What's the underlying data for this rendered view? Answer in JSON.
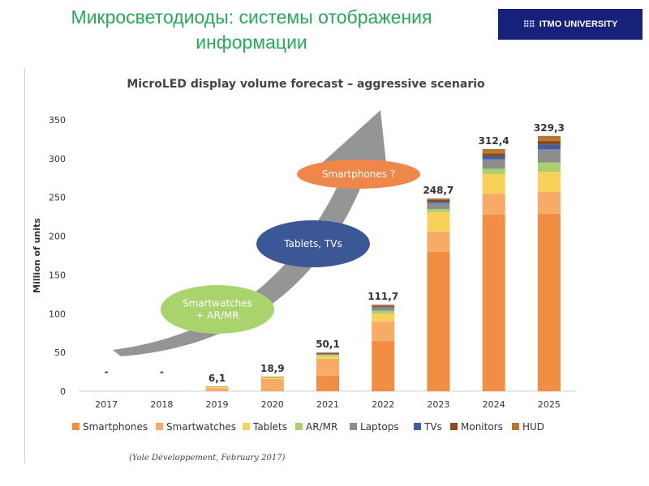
{
  "slide": {
    "title_line1": "Микросветодиоды: системы отображения",
    "title_line2": "информации",
    "logo_text": "ITMO UNIVERSITY"
  },
  "chart_data": {
    "type": "bar",
    "stacked": true,
    "title": "MicroLED display volume forecast – aggressive scenario",
    "ylabel": "Million of units",
    "xlabel": "",
    "ylim": [
      0,
      350
    ],
    "yticks": [
      0,
      50,
      100,
      150,
      200,
      250,
      300,
      350
    ],
    "grid": false,
    "legend_position": "bottom",
    "categories": [
      "2017",
      "2018",
      "2019",
      "2020",
      "2021",
      "2022",
      "2023",
      "2024",
      "2025"
    ],
    "totals": [
      "-",
      "-",
      "6,1",
      "18,9",
      "50,1",
      "111,7",
      "248,7",
      "312,4",
      "329,3"
    ],
    "series": [
      {
        "name": "Smartphones",
        "color": "#f28e44",
        "values": [
          0,
          0,
          0,
          0,
          20,
          65,
          180,
          228,
          229
        ]
      },
      {
        "name": "Smartwatches",
        "color": "#f7ab66",
        "values": [
          0,
          0,
          4,
          16,
          22,
          25,
          26,
          27,
          28
        ]
      },
      {
        "name": "Tablets",
        "color": "#f9d15a",
        "values": [
          0,
          0,
          1,
          1.5,
          3,
          10,
          25,
          25,
          26
        ]
      },
      {
        "name": "AR/MR",
        "color": "#a9d06b",
        "values": [
          0,
          0,
          0.8,
          1.2,
          2,
          4,
          4,
          7,
          12
        ]
      },
      {
        "name": "Laptops",
        "color": "#8c8c8c",
        "values": [
          0,
          0,
          0,
          0,
          1,
          4,
          8,
          12,
          17
        ]
      },
      {
        "name": "TVs",
        "color": "#3e5ea8",
        "values": [
          0,
          0,
          0,
          0,
          0.5,
          1,
          2,
          4,
          6
        ]
      },
      {
        "name": "Monitors",
        "color": "#8f4a1e",
        "values": [
          0,
          0,
          0,
          0.1,
          0.8,
          1.5,
          2,
          4,
          5
        ]
      },
      {
        "name": "HUD",
        "color": "#b9782f",
        "values": [
          0,
          0,
          0.3,
          0.1,
          0.8,
          1.2,
          1.7,
          5.4,
          6.3
        ]
      }
    ],
    "annotations": [
      "Smartwatches + AR/MR",
      "Tablets, TVs",
      "Smartphones ?"
    ],
    "annotation_colors": [
      "#a9d36c",
      "#3b5796",
      "#f0874a"
    ],
    "source": "(Yole Développement, February 2017)"
  }
}
